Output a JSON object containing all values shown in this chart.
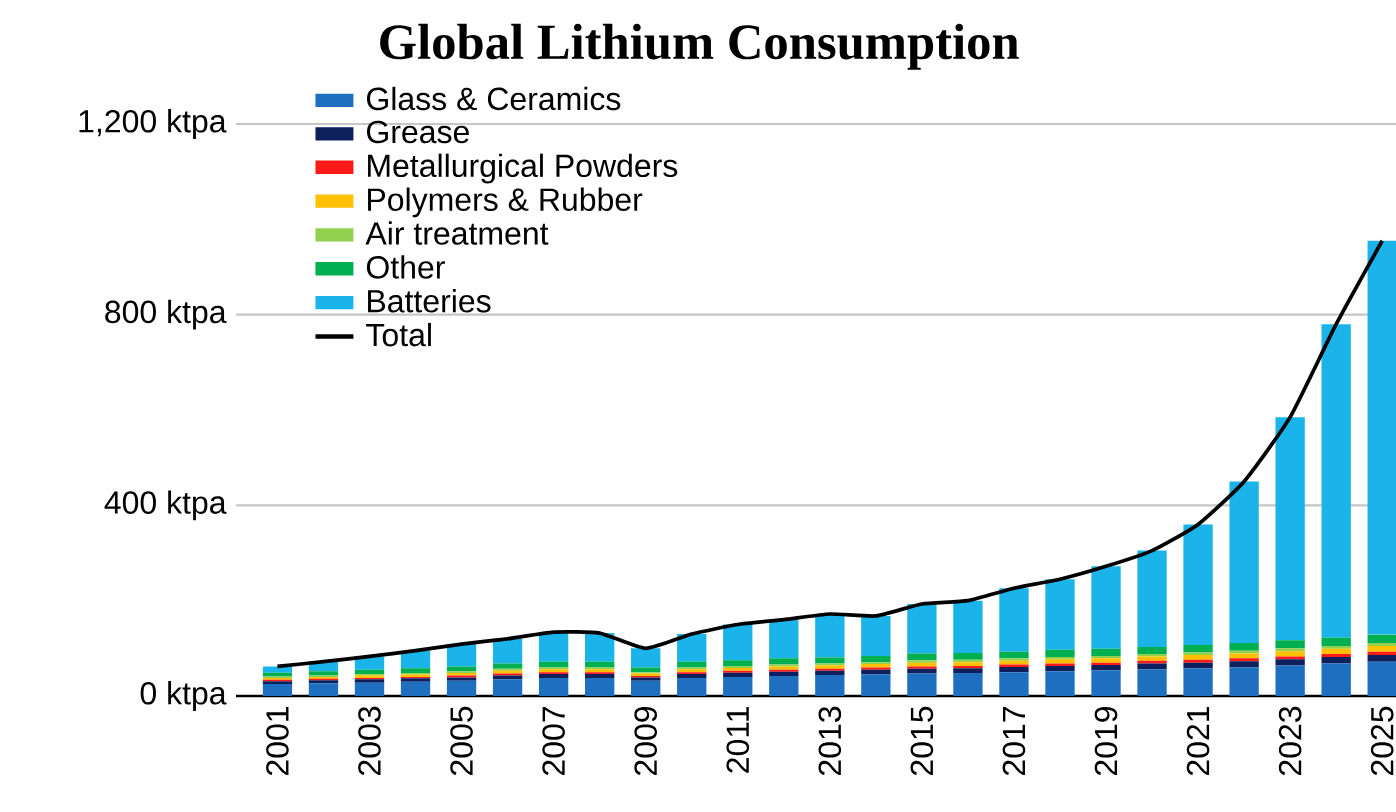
{
  "chart_data": {
    "type": "bar",
    "stacked": true,
    "title": "Global Lithium Consumption",
    "categories": [
      "2001",
      null,
      "2003",
      null,
      "2005",
      null,
      "2007",
      null,
      "2009",
      null,
      "2011",
      null,
      "2013",
      null,
      "2015",
      null,
      "2017",
      null,
      "2019",
      null,
      "2021",
      null,
      "2023",
      null,
      "2025"
    ],
    "ylim": [
      0,
      1200
    ],
    "yticks": [
      {
        "value": 0,
        "label": "0 ktpa"
      },
      {
        "value": 400,
        "label": "400 ktpa"
      },
      {
        "value": 800,
        "label": "800 ktpa"
      },
      {
        "value": 1200,
        "label": "1,200 ktpa"
      }
    ],
    "grid": "y",
    "legend": "top left",
    "series": [
      {
        "name": "Glass & Ceramics",
        "color": "#1f6fc0",
        "values": [
          25,
          27,
          28,
          30,
          32,
          35,
          38,
          38,
          32,
          38,
          40,
          42,
          44,
          45,
          47,
          48,
          50,
          52,
          54,
          56,
          58,
          60,
          64,
          68,
          72
        ]
      },
      {
        "name": "Grease",
        "color": "#0d1f5c",
        "values": [
          6,
          6,
          7,
          7,
          7,
          8,
          8,
          8,
          7,
          8,
          9,
          9,
          9,
          10,
          10,
          10,
          11,
          11,
          11,
          12,
          12,
          13,
          13,
          14,
          14
        ]
      },
      {
        "name": "Metallurgical Powders",
        "color": "#ff1a1a",
        "values": [
          3,
          3,
          3,
          3,
          4,
          4,
          4,
          4,
          3,
          4,
          4,
          4,
          4,
          5,
          5,
          5,
          5,
          5,
          5,
          6,
          6,
          6,
          6,
          6,
          7
        ]
      },
      {
        "name": "Polymers & Rubber",
        "color": "#ffc000",
        "values": [
          4,
          4,
          5,
          5,
          5,
          6,
          6,
          6,
          5,
          6,
          6,
          7,
          7,
          7,
          8,
          8,
          8,
          9,
          9,
          9,
          10,
          10,
          11,
          11,
          12
        ]
      },
      {
        "name": "Air treatment",
        "color": "#92d050",
        "values": [
          3,
          3,
          3,
          3,
          4,
          4,
          4,
          4,
          3,
          4,
          4,
          4,
          4,
          4,
          5,
          5,
          5,
          5,
          5,
          5,
          5,
          6,
          6,
          6,
          6
        ]
      },
      {
        "name": "Other",
        "color": "#00b050",
        "values": [
          8,
          9,
          9,
          10,
          10,
          11,
          12,
          12,
          10,
          12,
          12,
          13,
          13,
          13,
          14,
          14,
          14,
          15,
          15,
          15,
          16,
          16,
          17,
          17,
          18
        ]
      },
      {
        "name": "Batteries",
        "color": "#1ab4ea",
        "values": [
          13,
          20,
          28,
          37,
          47,
          52,
          62,
          60,
          40,
          58,
          75,
          81,
          91,
          84,
          104,
          110,
          133,
          148,
          173,
          202,
          253,
          339,
          468,
          658,
          826
        ]
      },
      {
        "name": "Total",
        "type": "line",
        "color": "#000000",
        "values": [
          62,
          72,
          83,
          95,
          109,
          120,
          134,
          132,
          100,
          130,
          150,
          160,
          172,
          168,
          193,
          200,
          226,
          245,
          272,
          305,
          360,
          450,
          585,
          780,
          955
        ]
      }
    ]
  }
}
